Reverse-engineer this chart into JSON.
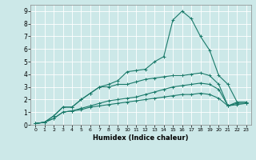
{
  "title": "",
  "xlabel": "Humidex (Indice chaleur)",
  "ylabel": "",
  "background_color": "#cce8e8",
  "grid_color": "#ffffff",
  "line_color": "#1a7a6a",
  "xlim": [
    -0.5,
    23.5
  ],
  "ylim": [
    0,
    9.5
  ],
  "xticks": [
    0,
    1,
    2,
    3,
    4,
    5,
    6,
    7,
    8,
    9,
    10,
    11,
    12,
    13,
    14,
    15,
    16,
    17,
    18,
    19,
    20,
    21,
    22,
    23
  ],
  "yticks": [
    0,
    1,
    2,
    3,
    4,
    5,
    6,
    7,
    8,
    9
  ],
  "series": [
    [
      0.1,
      0.2,
      0.7,
      1.4,
      1.4,
      2.0,
      2.5,
      3.0,
      3.2,
      3.5,
      4.2,
      4.3,
      4.4,
      5.0,
      5.4,
      8.3,
      9.0,
      8.4,
      7.0,
      5.9,
      3.9,
      3.2,
      1.8,
      1.8
    ],
    [
      0.1,
      0.2,
      0.7,
      1.4,
      1.4,
      2.0,
      2.5,
      3.0,
      3.0,
      3.2,
      3.2,
      3.4,
      3.6,
      3.7,
      3.8,
      3.9,
      3.9,
      4.0,
      4.1,
      3.9,
      3.2,
      1.5,
      1.8,
      1.8
    ],
    [
      0.1,
      0.2,
      0.5,
      1.0,
      1.1,
      1.3,
      1.5,
      1.7,
      1.9,
      2.0,
      2.1,
      2.2,
      2.4,
      2.6,
      2.8,
      3.0,
      3.1,
      3.2,
      3.3,
      3.2,
      2.8,
      1.5,
      1.7,
      1.7
    ],
    [
      0.1,
      0.2,
      0.5,
      1.0,
      1.1,
      1.2,
      1.4,
      1.5,
      1.6,
      1.7,
      1.8,
      1.9,
      2.0,
      2.1,
      2.2,
      2.3,
      2.4,
      2.4,
      2.5,
      2.4,
      2.1,
      1.5,
      1.6,
      1.7
    ]
  ]
}
